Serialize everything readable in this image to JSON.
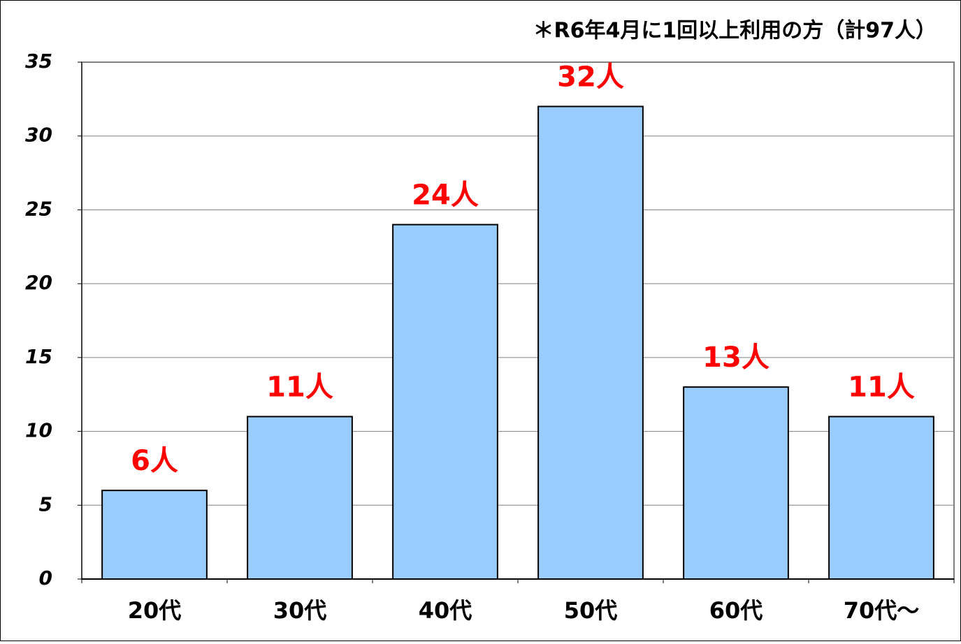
{
  "chart_data": {
    "type": "bar",
    "title": "＊R6年4月に1回以上利用の方（計97人）",
    "categories": [
      "20代",
      "30代",
      "40代",
      "50代",
      "60代",
      "70代～"
    ],
    "values": [
      6,
      11,
      24,
      32,
      13,
      11
    ],
    "value_labels": [
      "6人",
      "11人",
      "24人",
      "32人",
      "13人",
      "11人"
    ],
    "color": "#99ccff",
    "label_color": "#ff0000",
    "ylim": [
      0,
      35
    ],
    "yticks": [
      0,
      5,
      10,
      15,
      20,
      25,
      30,
      35
    ],
    "grid": true
  }
}
